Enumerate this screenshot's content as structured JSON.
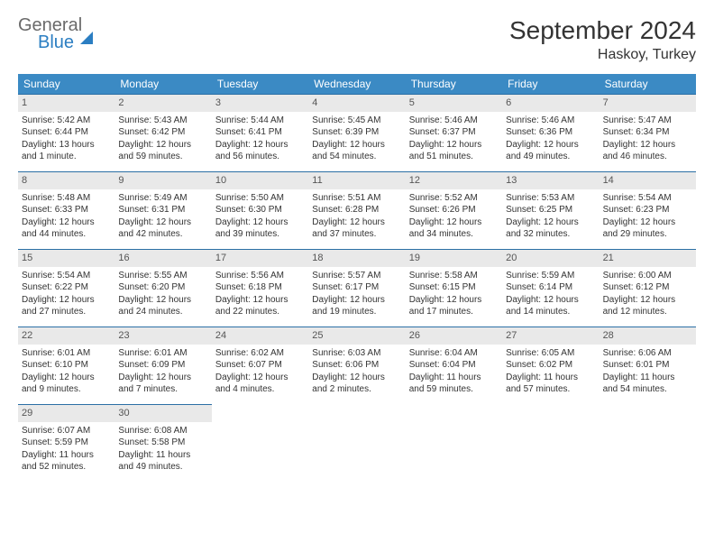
{
  "logo": {
    "line1": "General",
    "line2": "Blue"
  },
  "title": "September 2024",
  "location": "Haskoy, Turkey",
  "colors": {
    "header_bg": "#3b8ac4",
    "header_fg": "#ffffff",
    "daynum_bg": "#e9e9e9",
    "cell_border": "#2b6fa5",
    "brand_blue": "#2b7ec2",
    "brand_gray": "#6a6a6a"
  },
  "weekdays": [
    "Sunday",
    "Monday",
    "Tuesday",
    "Wednesday",
    "Thursday",
    "Friday",
    "Saturday"
  ],
  "days": [
    {
      "n": "1",
      "sr": "Sunrise: 5:42 AM",
      "ss": "Sunset: 6:44 PM",
      "dl1": "Daylight: 13 hours",
      "dl2": "and 1 minute."
    },
    {
      "n": "2",
      "sr": "Sunrise: 5:43 AM",
      "ss": "Sunset: 6:42 PM",
      "dl1": "Daylight: 12 hours",
      "dl2": "and 59 minutes."
    },
    {
      "n": "3",
      "sr": "Sunrise: 5:44 AM",
      "ss": "Sunset: 6:41 PM",
      "dl1": "Daylight: 12 hours",
      "dl2": "and 56 minutes."
    },
    {
      "n": "4",
      "sr": "Sunrise: 5:45 AM",
      "ss": "Sunset: 6:39 PM",
      "dl1": "Daylight: 12 hours",
      "dl2": "and 54 minutes."
    },
    {
      "n": "5",
      "sr": "Sunrise: 5:46 AM",
      "ss": "Sunset: 6:37 PM",
      "dl1": "Daylight: 12 hours",
      "dl2": "and 51 minutes."
    },
    {
      "n": "6",
      "sr": "Sunrise: 5:46 AM",
      "ss": "Sunset: 6:36 PM",
      "dl1": "Daylight: 12 hours",
      "dl2": "and 49 minutes."
    },
    {
      "n": "7",
      "sr": "Sunrise: 5:47 AM",
      "ss": "Sunset: 6:34 PM",
      "dl1": "Daylight: 12 hours",
      "dl2": "and 46 minutes."
    },
    {
      "n": "8",
      "sr": "Sunrise: 5:48 AM",
      "ss": "Sunset: 6:33 PM",
      "dl1": "Daylight: 12 hours",
      "dl2": "and 44 minutes."
    },
    {
      "n": "9",
      "sr": "Sunrise: 5:49 AM",
      "ss": "Sunset: 6:31 PM",
      "dl1": "Daylight: 12 hours",
      "dl2": "and 42 minutes."
    },
    {
      "n": "10",
      "sr": "Sunrise: 5:50 AM",
      "ss": "Sunset: 6:30 PM",
      "dl1": "Daylight: 12 hours",
      "dl2": "and 39 minutes."
    },
    {
      "n": "11",
      "sr": "Sunrise: 5:51 AM",
      "ss": "Sunset: 6:28 PM",
      "dl1": "Daylight: 12 hours",
      "dl2": "and 37 minutes."
    },
    {
      "n": "12",
      "sr": "Sunrise: 5:52 AM",
      "ss": "Sunset: 6:26 PM",
      "dl1": "Daylight: 12 hours",
      "dl2": "and 34 minutes."
    },
    {
      "n": "13",
      "sr": "Sunrise: 5:53 AM",
      "ss": "Sunset: 6:25 PM",
      "dl1": "Daylight: 12 hours",
      "dl2": "and 32 minutes."
    },
    {
      "n": "14",
      "sr": "Sunrise: 5:54 AM",
      "ss": "Sunset: 6:23 PM",
      "dl1": "Daylight: 12 hours",
      "dl2": "and 29 minutes."
    },
    {
      "n": "15",
      "sr": "Sunrise: 5:54 AM",
      "ss": "Sunset: 6:22 PM",
      "dl1": "Daylight: 12 hours",
      "dl2": "and 27 minutes."
    },
    {
      "n": "16",
      "sr": "Sunrise: 5:55 AM",
      "ss": "Sunset: 6:20 PM",
      "dl1": "Daylight: 12 hours",
      "dl2": "and 24 minutes."
    },
    {
      "n": "17",
      "sr": "Sunrise: 5:56 AM",
      "ss": "Sunset: 6:18 PM",
      "dl1": "Daylight: 12 hours",
      "dl2": "and 22 minutes."
    },
    {
      "n": "18",
      "sr": "Sunrise: 5:57 AM",
      "ss": "Sunset: 6:17 PM",
      "dl1": "Daylight: 12 hours",
      "dl2": "and 19 minutes."
    },
    {
      "n": "19",
      "sr": "Sunrise: 5:58 AM",
      "ss": "Sunset: 6:15 PM",
      "dl1": "Daylight: 12 hours",
      "dl2": "and 17 minutes."
    },
    {
      "n": "20",
      "sr": "Sunrise: 5:59 AM",
      "ss": "Sunset: 6:14 PM",
      "dl1": "Daylight: 12 hours",
      "dl2": "and 14 minutes."
    },
    {
      "n": "21",
      "sr": "Sunrise: 6:00 AM",
      "ss": "Sunset: 6:12 PM",
      "dl1": "Daylight: 12 hours",
      "dl2": "and 12 minutes."
    },
    {
      "n": "22",
      "sr": "Sunrise: 6:01 AM",
      "ss": "Sunset: 6:10 PM",
      "dl1": "Daylight: 12 hours",
      "dl2": "and 9 minutes."
    },
    {
      "n": "23",
      "sr": "Sunrise: 6:01 AM",
      "ss": "Sunset: 6:09 PM",
      "dl1": "Daylight: 12 hours",
      "dl2": "and 7 minutes."
    },
    {
      "n": "24",
      "sr": "Sunrise: 6:02 AM",
      "ss": "Sunset: 6:07 PM",
      "dl1": "Daylight: 12 hours",
      "dl2": "and 4 minutes."
    },
    {
      "n": "25",
      "sr": "Sunrise: 6:03 AM",
      "ss": "Sunset: 6:06 PM",
      "dl1": "Daylight: 12 hours",
      "dl2": "and 2 minutes."
    },
    {
      "n": "26",
      "sr": "Sunrise: 6:04 AM",
      "ss": "Sunset: 6:04 PM",
      "dl1": "Daylight: 11 hours",
      "dl2": "and 59 minutes."
    },
    {
      "n": "27",
      "sr": "Sunrise: 6:05 AM",
      "ss": "Sunset: 6:02 PM",
      "dl1": "Daylight: 11 hours",
      "dl2": "and 57 minutes."
    },
    {
      "n": "28",
      "sr": "Sunrise: 6:06 AM",
      "ss": "Sunset: 6:01 PM",
      "dl1": "Daylight: 11 hours",
      "dl2": "and 54 minutes."
    },
    {
      "n": "29",
      "sr": "Sunrise: 6:07 AM",
      "ss": "Sunset: 5:59 PM",
      "dl1": "Daylight: 11 hours",
      "dl2": "and 52 minutes."
    },
    {
      "n": "30",
      "sr": "Sunrise: 6:08 AM",
      "ss": "Sunset: 5:58 PM",
      "dl1": "Daylight: 11 hours",
      "dl2": "and 49 minutes."
    }
  ]
}
